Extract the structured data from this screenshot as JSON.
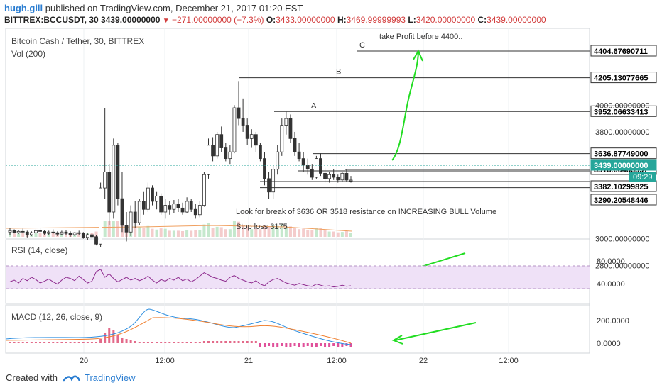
{
  "header": {
    "user": "hugh.gill",
    "published": "published on TradingView.com, December 21, 2017 01:20 EST",
    "symbol": "BITTREX:BCCUSDT, 30",
    "price": "3439.00000000",
    "change": "−271.00000000 (−7.3%)",
    "o_label": "O:",
    "o_value": "3433.00000000",
    "h_label": "H:",
    "h_value": "3469.99999993",
    "l_label": "L:",
    "l_value": "3420.00000000",
    "c_label": "C:",
    "c_value": "3439.00000000"
  },
  "chart_data": {
    "type": "candlestick",
    "title": "Bitcoin Cash / Tether, 30, BITTREX",
    "volume_label": "Vol (200)",
    "ylim": [
      2700,
      4800
    ],
    "y_ticks": [
      "4000.00000000",
      "3800.00000000",
      "3000.00000000",
      "2800.00000000"
    ],
    "x_ticks": [
      "20",
      "12:00",
      "21",
      "12:00",
      "22",
      "12:00"
    ],
    "price_levels": [
      {
        "label": "4404.67690711",
        "value": 4404.68,
        "name": "C"
      },
      {
        "label": "4205.13077665",
        "value": 4205.13,
        "name": "B"
      },
      {
        "label": "3952.06633413",
        "value": 3952.07,
        "name": "A"
      },
      {
        "label": "3636.87749000",
        "value": 3636.88,
        "name": ""
      },
      {
        "label": "3518.60483397",
        "value": 3518.6,
        "name": ""
      },
      {
        "label": "3439.00000000",
        "value": 3439.0,
        "name": ""
      },
      {
        "label": "3382.10299825",
        "value": 3382.1,
        "name": ""
      },
      {
        "label": "3290.20548446",
        "value": 3290.21,
        "name": ""
      }
    ],
    "countdown": "09:29",
    "annotations": {
      "take_profit": "take Profit before 4400..",
      "break_note": "Look for break of 3636 OR 3518 resistance on INCREASING BULL Volume",
      "stop_loss": "Stop loss 3175"
    },
    "candles": [
      [
        3050,
        3080,
        3030,
        3060
      ],
      [
        3060,
        3070,
        3040,
        3045
      ],
      [
        3045,
        3065,
        3035,
        3055
      ],
      [
        3055,
        3075,
        3040,
        3050
      ],
      [
        3050,
        3060,
        3010,
        3030
      ],
      [
        3030,
        3055,
        3020,
        3045
      ],
      [
        3045,
        3070,
        3035,
        3060
      ],
      [
        3060,
        3080,
        3045,
        3055
      ],
      [
        3055,
        3065,
        3030,
        3040
      ],
      [
        3040,
        3060,
        3025,
        3050
      ],
      [
        3050,
        3070,
        3035,
        3045
      ],
      [
        3045,
        3055,
        3020,
        3035
      ],
      [
        3035,
        3060,
        3025,
        3050
      ],
      [
        3050,
        3065,
        3030,
        3040
      ],
      [
        3040,
        3055,
        3015,
        3030
      ],
      [
        3030,
        3050,
        3020,
        3045
      ],
      [
        3045,
        3060,
        3030,
        3040
      ],
      [
        3040,
        3050,
        3000,
        3010
      ],
      [
        3010,
        3040,
        2990,
        3030
      ],
      [
        3030,
        3045,
        3000,
        3015
      ],
      [
        3015,
        3030,
        2950,
        2960
      ],
      [
        2960,
        3420,
        2940,
        3380
      ],
      [
        3380,
        3980,
        3300,
        3500
      ],
      [
        3500,
        3560,
        3100,
        3200
      ],
      [
        3200,
        3750,
        3150,
        3700
      ],
      [
        3700,
        3720,
        3250,
        3300
      ],
      [
        3300,
        3500,
        3050,
        3100
      ],
      [
        3100,
        3200,
        2980,
        3050
      ],
      [
        3050,
        3250,
        3020,
        3200
      ],
      [
        3200,
        3280,
        3080,
        3120
      ],
      [
        3120,
        3300,
        3100,
        3280
      ],
      [
        3280,
        3350,
        3180,
        3220
      ],
      [
        3220,
        3420,
        3200,
        3380
      ],
      [
        3380,
        3400,
        3250,
        3280
      ],
      [
        3280,
        3350,
        3220,
        3320
      ],
      [
        3320,
        3340,
        3180,
        3200
      ],
      [
        3200,
        3300,
        3150,
        3250
      ],
      [
        3250,
        3280,
        3180,
        3220
      ],
      [
        3220,
        3290,
        3190,
        3260
      ],
      [
        3260,
        3300,
        3200,
        3230
      ],
      [
        3230,
        3270,
        3180,
        3200
      ],
      [
        3200,
        3310,
        3190,
        3280
      ],
      [
        3280,
        3300,
        3200,
        3220
      ],
      [
        3220,
        3260,
        3150,
        3180
      ],
      [
        3180,
        3280,
        3160,
        3250
      ],
      [
        3250,
        3500,
        3240,
        3480
      ],
      [
        3480,
        3750,
        3450,
        3700
      ],
      [
        3700,
        3760,
        3580,
        3620
      ],
      [
        3620,
        3800,
        3600,
        3780
      ],
      [
        3780,
        3840,
        3650,
        3680
      ],
      [
        3680,
        3720,
        3580,
        3600
      ],
      [
        3600,
        3700,
        3560,
        3650
      ],
      [
        3650,
        4000,
        3640,
        3980
      ],
      [
        3980,
        4180,
        3850,
        3900
      ],
      [
        3900,
        4050,
        3800,
        3850
      ],
      [
        3850,
        3900,
        3700,
        3750
      ],
      [
        3750,
        3820,
        3680,
        3780
      ],
      [
        3780,
        3800,
        3650,
        3700
      ],
      [
        3700,
        3720,
        3580,
        3600
      ],
      [
        3600,
        3650,
        3400,
        3450
      ],
      [
        3450,
        3500,
        3300,
        3350
      ],
      [
        3350,
        3550,
        3300,
        3520
      ],
      [
        3520,
        3700,
        3480,
        3650
      ],
      [
        3650,
        3900,
        3620,
        3850
      ],
      [
        3850,
        3950,
        3780,
        3900
      ],
      [
        3900,
        3930,
        3720,
        3750
      ],
      [
        3750,
        3800,
        3620,
        3650
      ],
      [
        3650,
        3720,
        3580,
        3600
      ],
      [
        3600,
        3650,
        3500,
        3550
      ],
      [
        3550,
        3600,
        3480,
        3520
      ],
      [
        3520,
        3560,
        3440,
        3460
      ],
      [
        3460,
        3620,
        3450,
        3600
      ],
      [
        3600,
        3640,
        3470,
        3490
      ],
      [
        3490,
        3530,
        3420,
        3450
      ],
      [
        3450,
        3500,
        3420,
        3480
      ],
      [
        3480,
        3520,
        3440,
        3460
      ],
      [
        3460,
        3480,
        3420,
        3440
      ],
      [
        3440,
        3500,
        3430,
        3490
      ],
      [
        3490,
        3520,
        3430,
        3439
      ],
      [
        3433,
        3470,
        3420,
        3439
      ]
    ],
    "rsi": {
      "label": "RSI (14, close)",
      "ticks": [
        "80.0000",
        "40.0000"
      ],
      "values": [
        52,
        55,
        50,
        58,
        54,
        60,
        56,
        50,
        53,
        57,
        52,
        48,
        55,
        60,
        58,
        54,
        62,
        56,
        50,
        53,
        70,
        74,
        60,
        66,
        58,
        52,
        56,
        60,
        55,
        58,
        54,
        57,
        62,
        55,
        50,
        56,
        53,
        58,
        55,
        60,
        54,
        57,
        52,
        56,
        62,
        68,
        64,
        60,
        58,
        55,
        53,
        60,
        63,
        58,
        55,
        52,
        50,
        54,
        48,
        45,
        52,
        56,
        58,
        54,
        50,
        48,
        46,
        49,
        47,
        45,
        44,
        48,
        46,
        44,
        45,
        43,
        44,
        46,
        44,
        45
      ]
    },
    "macd": {
      "label": "MACD (12, 26, close, 9)",
      "ticks": [
        "200.0000",
        "0.0000"
      ]
    }
  }
}
